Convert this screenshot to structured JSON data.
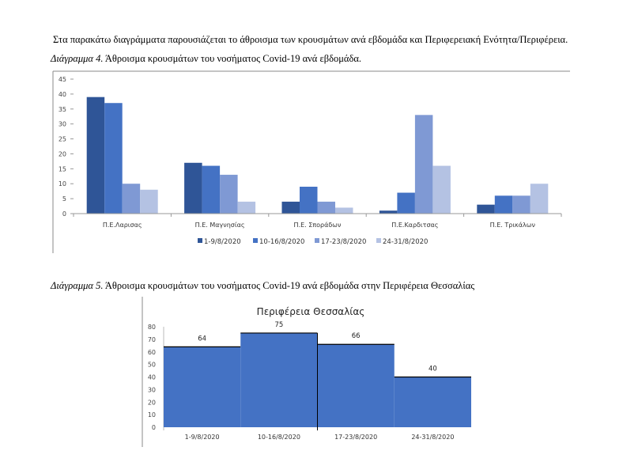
{
  "intro": "Στα παρακάτω διαγράμματα  παρουσιάζεται το άθροισμα των κρουσμάτων ανά εβδομάδα και Περιφερειακή Ενότητα/Περιφέρεια.",
  "caption4": {
    "label": "Διάγραμμα 4.",
    "text": " Άθροισμα κρουσμάτων του νοσήματος Covid-19 ανά εβδομάδα."
  },
  "caption5": {
    "label": "Διάγραμμα 5.",
    "text": " Άθροισμα κρουσμάτων του νοσήματος Covid-19 ανά εβδομάδα στην Περιφέρεια Θεσσαλίας"
  },
  "chart_data": [
    {
      "type": "bar",
      "title": "",
      "categories": [
        "Π.Ε.Λαρισας",
        "Π.Ε. Μαγνησίας",
        "Π.Ε. Σποράδων",
        "Π.Ε.Καρδιτσας",
        "Π.Ε. Τρικάλων"
      ],
      "series": [
        {
          "name": "1-9/8/2020",
          "values": [
            39,
            17,
            4,
            1,
            3
          ],
          "color": "#2F5597"
        },
        {
          "name": "10-16/8/2020",
          "values": [
            37,
            16,
            9,
            7,
            6
          ],
          "color": "#4472C4"
        },
        {
          "name": "17-23/8/2020",
          "values": [
            10,
            13,
            4,
            33,
            6
          ],
          "color": "#7F99D4"
        },
        {
          "name": "24-31/8/2020",
          "values": [
            8,
            4,
            2,
            16,
            10
          ],
          "color": "#B4C2E3"
        }
      ],
      "ylim": [
        0,
        45
      ],
      "yticks": [
        0,
        5,
        10,
        15,
        20,
        25,
        30,
        35,
        40,
        45
      ],
      "legend": "bottom"
    },
    {
      "type": "bar",
      "title": "Περιφέρεια Θεσσαλίας",
      "categories": [
        "1-9/8/2020",
        "10-16/8/2020",
        "17-23/8/2020",
        "24-31/8/2020"
      ],
      "values": [
        64,
        75,
        66,
        40
      ],
      "data_labels": [
        "64",
        "75",
        "66",
        "40"
      ],
      "color": "#4472C4",
      "ylim": [
        0,
        80
      ],
      "yticks": [
        0,
        10,
        20,
        30,
        40,
        50,
        60,
        70,
        80
      ]
    }
  ]
}
